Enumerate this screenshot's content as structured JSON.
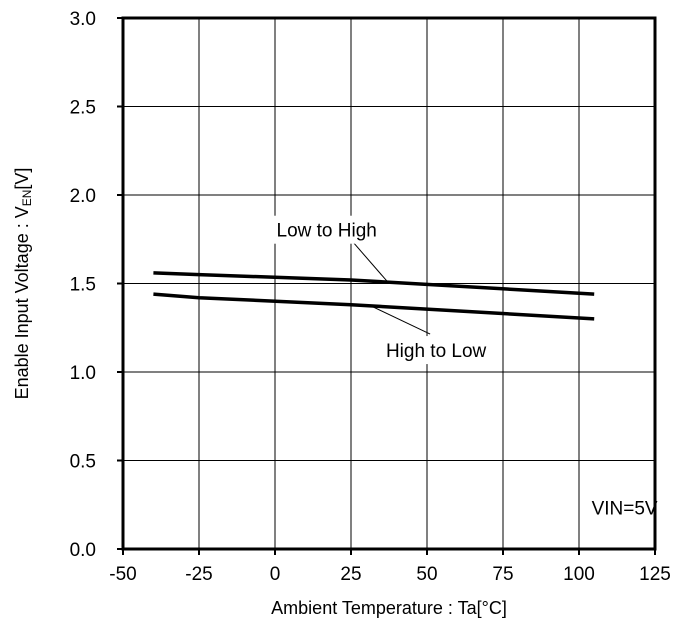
{
  "chart_data": {
    "type": "line",
    "title": "",
    "xlabel": "Ambient Temperature : Ta[°C]",
    "ylabel": "Enable Input Voltage : VEN[V]",
    "ylabel_parts": {
      "before": "Enable Input Voltage : V",
      "sub": "EN",
      "after": "[V]"
    },
    "xlim": [
      -50,
      125
    ],
    "ylim": [
      0.0,
      3.0
    ],
    "xticks": [
      -50,
      -25,
      0,
      25,
      50,
      75,
      100,
      125
    ],
    "xtick_labels": [
      "-50",
      "-25",
      "0",
      "25",
      "50",
      "75",
      "100",
      "125"
    ],
    "yticks": [
      0.0,
      0.5,
      1.0,
      1.5,
      2.0,
      2.5,
      3.0
    ],
    "ytick_labels": [
      "0.0",
      "0.5",
      "1.0",
      "1.5",
      "2.0",
      "2.5",
      "3.0"
    ],
    "grid": true,
    "series": [
      {
        "name": "Low to High",
        "x": [
          -40,
          -25,
          25,
          105
        ],
        "y": [
          1.56,
          1.55,
          1.52,
          1.44
        ]
      },
      {
        "name": "High to Low",
        "x": [
          -40,
          -25,
          25,
          105
        ],
        "y": [
          1.44,
          1.42,
          1.38,
          1.3
        ]
      }
    ],
    "annotations": [
      {
        "text": "Low to High",
        "x": 17,
        "y": 1.77,
        "pointer_to": [
          37,
          1.51
        ]
      },
      {
        "text": "High to Low",
        "x": 53,
        "y": 1.09,
        "pointer_to": [
          32,
          1.37
        ]
      },
      {
        "text": "VIN=5V",
        "x": 115,
        "y": 0.2
      }
    ]
  }
}
